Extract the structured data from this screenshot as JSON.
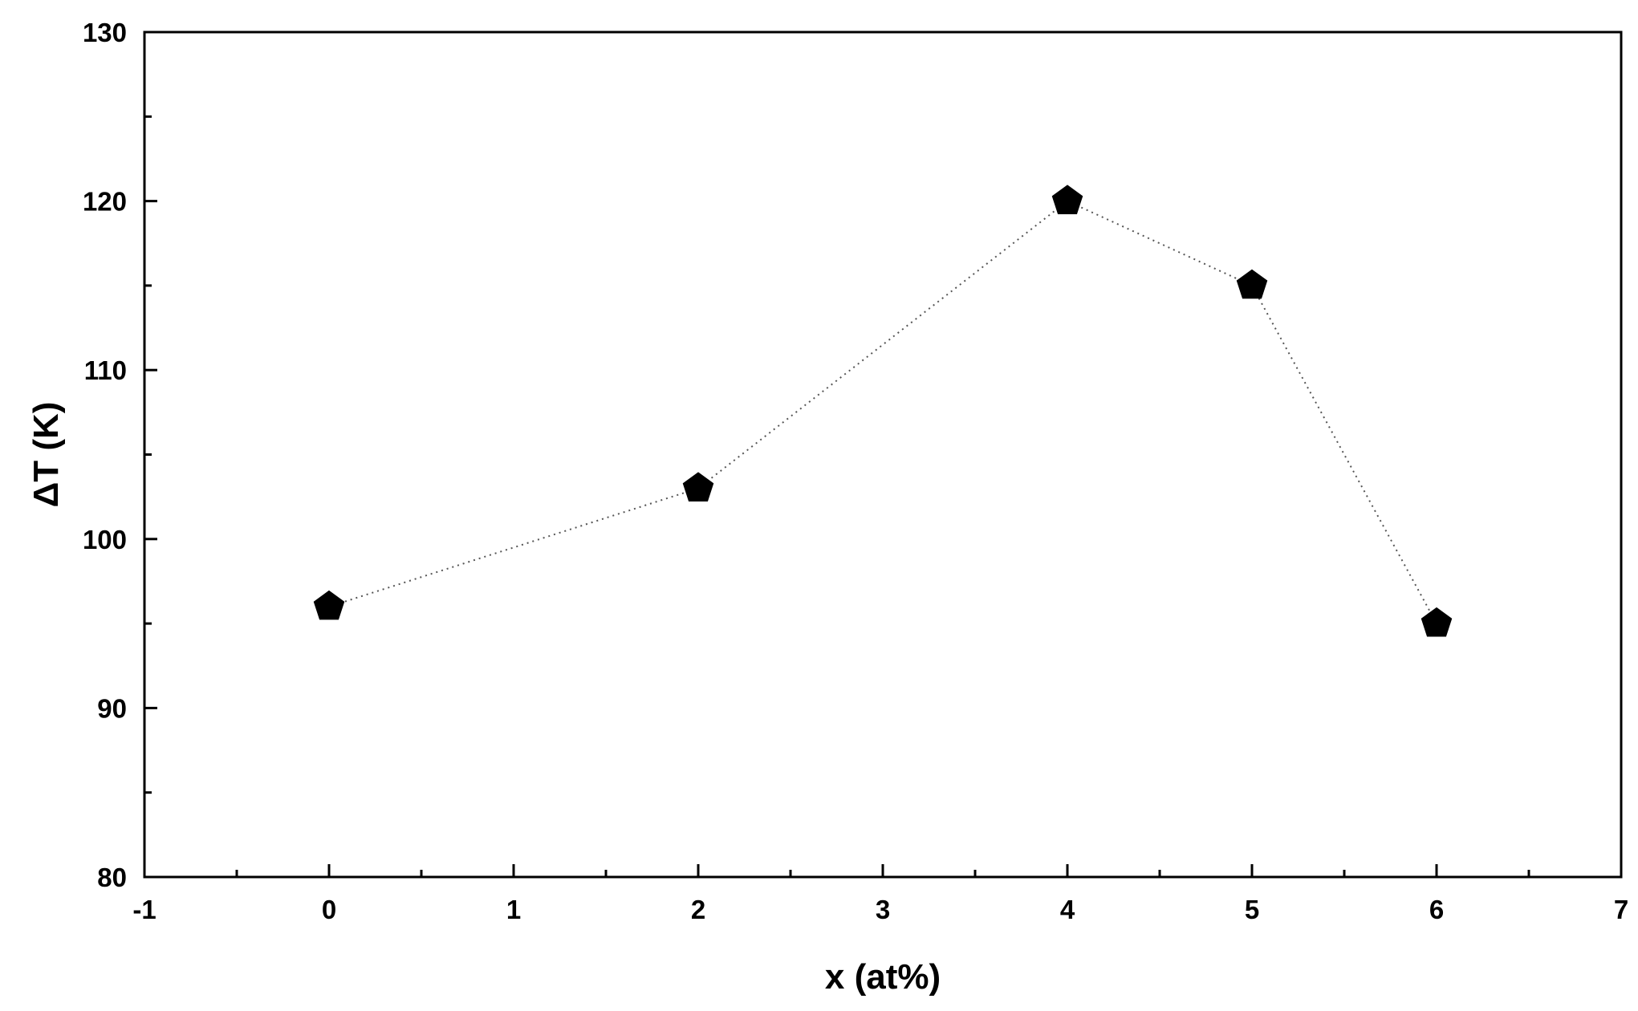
{
  "chart_data": {
    "type": "scatter",
    "title": "",
    "xlabel": "x (at%)",
    "ylabel": "ΔT (K)",
    "xlim": [
      -1,
      7
    ],
    "ylim": [
      80,
      130
    ],
    "x_ticks": [
      -1,
      0,
      1,
      2,
      3,
      4,
      5,
      6,
      7
    ],
    "y_ticks": [
      80,
      90,
      100,
      110,
      120,
      130
    ],
    "x_tick_labels": [
      "-1",
      "0",
      "1",
      "2",
      "3",
      "4",
      "5",
      "6",
      "7"
    ],
    "y_tick_labels": [
      "80",
      "90",
      "100",
      "110",
      "120",
      "130"
    ],
    "grid": false,
    "legend": "none",
    "series": [
      {
        "marker": "pentagon",
        "marker_color": "#000000",
        "line_style": "dotted",
        "x": [
          0,
          2,
          4,
          5,
          6
        ],
        "y": [
          96,
          103,
          120,
          115,
          95
        ]
      }
    ]
  }
}
